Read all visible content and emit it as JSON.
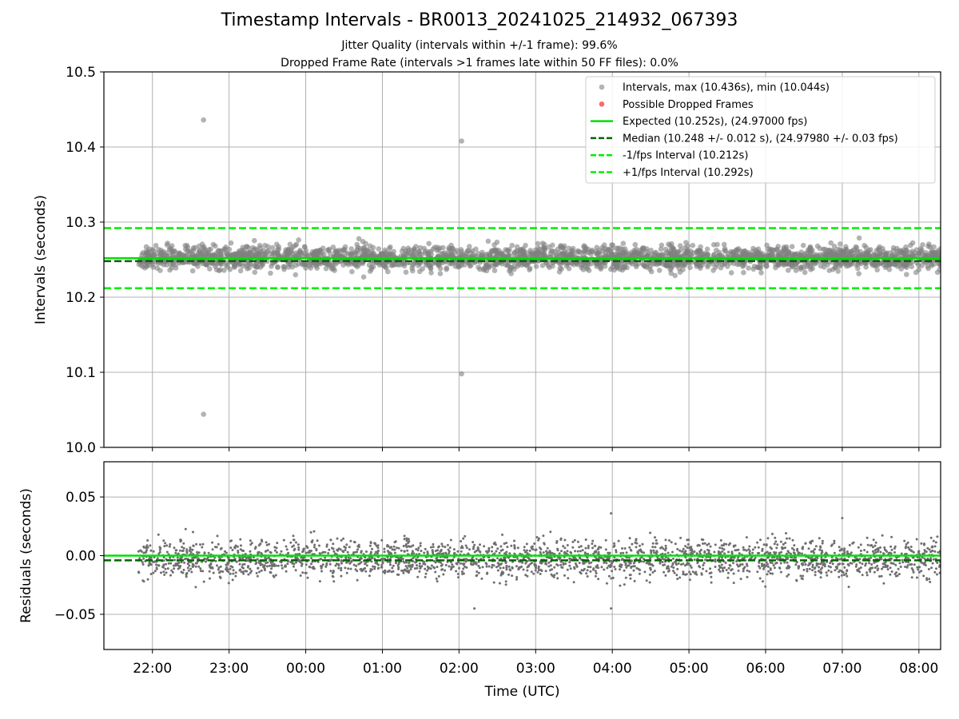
{
  "header": {
    "title": "Timestamp Intervals - BR0013_20241025_214932_067393",
    "subtitle_jitter": "Jitter Quality (intervals within +/-1 frame): 99.6%",
    "subtitle_dropped": "Dropped Frame Rate (intervals >1 frames late within 50 FF files): 0.0%"
  },
  "colors": {
    "points": "#808080",
    "dropped": "#ff0000",
    "expected": "#00e000",
    "median": "#006400",
    "interval_lines": "#00ee00",
    "grid": "#b0b0b0"
  },
  "chart_data": [
    {
      "type": "scatter",
      "panel": "intervals",
      "xlabel": "",
      "ylabel": "Intervals (seconds)",
      "ylim": [
        10.0,
        10.5
      ],
      "yticks": [
        10.0,
        10.1,
        10.2,
        10.3,
        10.4,
        10.5
      ],
      "ytick_labels": [
        "10.0",
        "10.1",
        "10.2",
        "10.3",
        "10.4",
        "10.5"
      ],
      "xlim": [
        "2024-10-25 21:22",
        "2024-10-26 08:17"
      ],
      "grid": true,
      "legend_position": "top-right",
      "legend": [
        "Intervals, max (10.436s), min (10.044s)",
        "Possible Dropped Frames",
        "Expected (10.252s), (24.97000 fps)",
        "Median (10.248 +/- 0.012 s), (24.97980 +/- 0.03 fps)",
        "-1/fps Interval (10.212s)",
        "+1/fps Interval (10.292s)"
      ],
      "series": [
        {
          "name": "Intervals, max (10.436s), min (10.044s)",
          "time_range": [
            "2024-10-25 21:49",
            "2024-10-26 08:17"
          ],
          "value_band": [
            10.21,
            10.29
          ],
          "typical_range": [
            10.23,
            10.275
          ],
          "outliers": [
            {
              "time": "2024-10-25 22:40",
              "value": 10.436
            },
            {
              "time": "2024-10-25 22:40",
              "value": 10.044
            },
            {
              "time": "2024-10-26 02:02",
              "value": 10.408
            },
            {
              "time": "2024-10-26 02:02",
              "value": 10.098
            }
          ]
        },
        {
          "name": "Possible Dropped Frames",
          "points": []
        }
      ],
      "reference_lines": [
        {
          "name": "Expected (10.252s), (24.97000 fps)",
          "y": 10.252,
          "style": "solid"
        },
        {
          "name": "Median (10.248 +/- 0.012 s), (24.97980 +/- 0.03 fps)",
          "y": 10.248,
          "style": "dashed"
        },
        {
          "name": "-1/fps Interval (10.212s)",
          "y": 10.212,
          "style": "dashed"
        },
        {
          "name": "+1/fps Interval (10.292s)",
          "y": 10.292,
          "style": "dashed"
        }
      ]
    },
    {
      "type": "scatter",
      "panel": "residuals",
      "xlabel": "Time (UTC)",
      "ylabel": "Residuals (seconds)",
      "ylim": [
        -0.08,
        0.08
      ],
      "yticks": [
        -0.05,
        0.0,
        0.05
      ],
      "ytick_labels": [
        "−0.05",
        "0.00",
        "0.05"
      ],
      "xticks": [
        "22:00",
        "23:00",
        "00:00",
        "01:00",
        "02:00",
        "03:00",
        "04:00",
        "05:00",
        "06:00",
        "07:00",
        "08:00"
      ],
      "grid": true,
      "series": [
        {
          "time_range": [
            "2024-10-25 21:49",
            "2024-10-26 08:17"
          ],
          "value_band": [
            -0.045,
            0.036
          ],
          "typical_range": [
            -0.025,
            0.02
          ],
          "extremes": [
            {
              "time": "2024-10-26 03:59",
              "value": 0.036
            },
            {
              "time": "2024-10-26 07:00",
              "value": 0.032
            },
            {
              "time": "2024-10-26 02:12",
              "value": -0.045
            },
            {
              "time": "2024-10-26 03:59",
              "value": -0.045
            }
          ]
        }
      ],
      "reference_lines": [
        {
          "y": 0.0,
          "style": "solid",
          "color_key": "expected"
        },
        {
          "y": -0.004,
          "style": "dashed",
          "color_key": "median"
        }
      ]
    }
  ]
}
